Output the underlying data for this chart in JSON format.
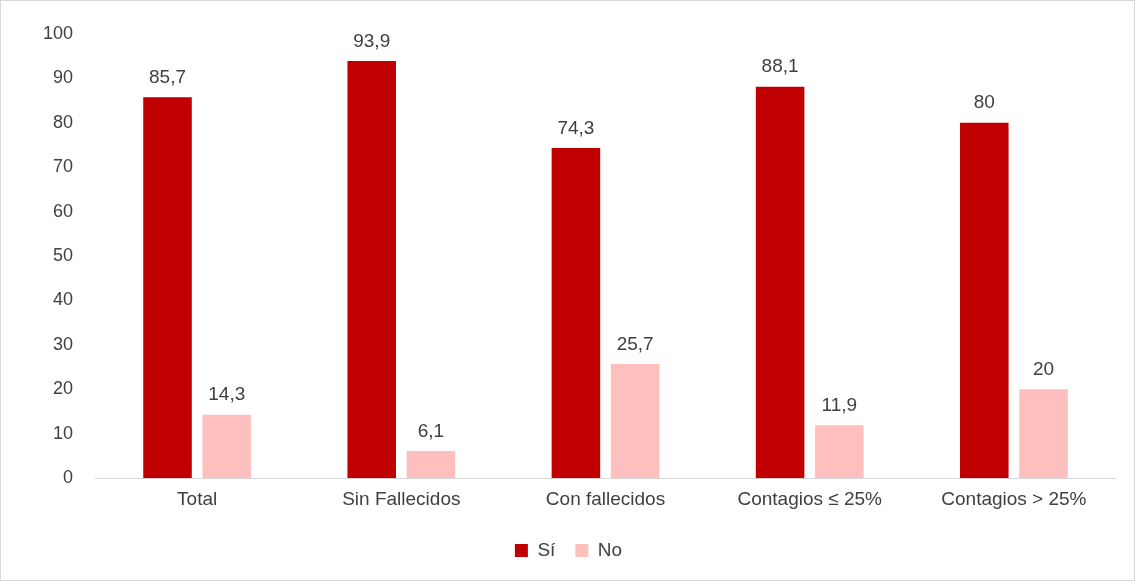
{
  "chart_data": {
    "type": "bar",
    "categories": [
      "Total",
      "Sin Fallecidos",
      "Con fallecidos",
      "Contagios ≤ 25%",
      "Contagios > 25%"
    ],
    "series": [
      {
        "name": "Sí",
        "color": "#c00000",
        "values": [
          85.7,
          93.9,
          74.3,
          88.1,
          80
        ],
        "value_labels": [
          "85,7",
          "93,9",
          "74,3",
          "88,1",
          "80"
        ]
      },
      {
        "name": "No",
        "color": "#ffbfbf",
        "values": [
          14.3,
          6.1,
          25.7,
          11.9,
          20
        ],
        "value_labels": [
          "14,3",
          "6,1",
          "25,7",
          "11,9",
          "20"
        ]
      }
    ],
    "ylim": [
      0,
      100
    ],
    "yticks": [
      0,
      10,
      20,
      30,
      40,
      50,
      60,
      70,
      80,
      90,
      100
    ],
    "grid": false,
    "legend": "bottom"
  }
}
